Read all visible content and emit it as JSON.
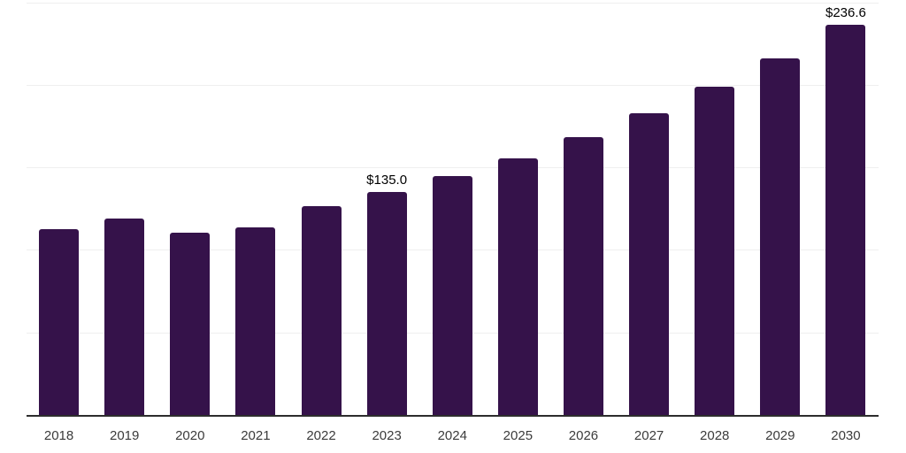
{
  "chart_data": {
    "type": "bar",
    "title": "",
    "xlabel": "",
    "ylabel": "",
    "categories": [
      "2018",
      "2019",
      "2020",
      "2021",
      "2022",
      "2023",
      "2024",
      "2025",
      "2026",
      "2027",
      "2028",
      "2029",
      "2030"
    ],
    "values": [
      112.3,
      119.2,
      110.5,
      113.7,
      126.5,
      135.0,
      144.7,
      155.5,
      168.5,
      182.5,
      199.0,
      216.0,
      236.6
    ],
    "data_labels": [
      {
        "category": "2023",
        "text": "$135.0"
      },
      {
        "category": "2030",
        "text": "$236.6"
      }
    ],
    "ylim": [
      0,
      250
    ],
    "gridline_step": 50,
    "grid": true,
    "legend": false,
    "y_tick_labels_shown": false,
    "colors": {
      "bar": "#35124a",
      "background": "#ffffff",
      "gridline": "#efefef",
      "axis_line": "#2d2d2d",
      "tick_label": "#3b3b3b",
      "data_label": "#000000"
    }
  }
}
